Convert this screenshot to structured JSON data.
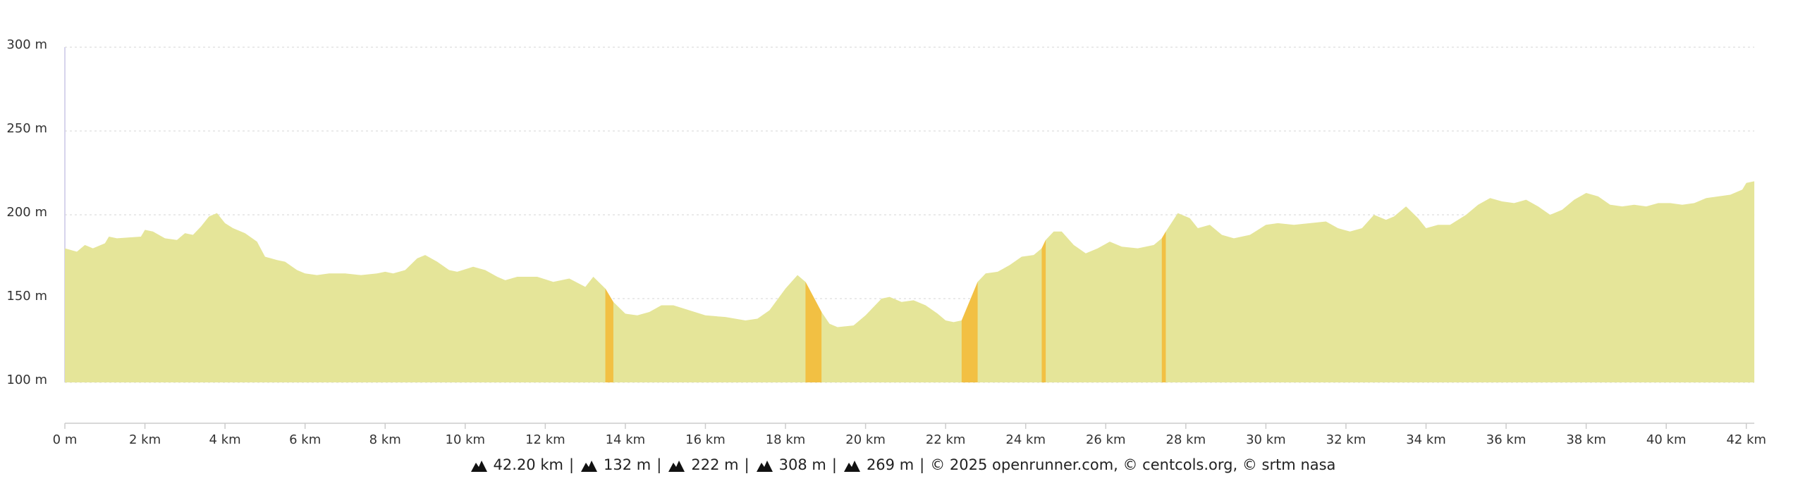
{
  "chart_data": {
    "type": "area",
    "xlim": [
      0,
      42.2
    ],
    "ylim": [
      100,
      300
    ],
    "xticks": [
      {
        "value": 0,
        "label": "0 m"
      },
      {
        "value": 2,
        "label": "2 km"
      },
      {
        "value": 4,
        "label": "4 km"
      },
      {
        "value": 6,
        "label": "6 km"
      },
      {
        "value": 8,
        "label": "8 km"
      },
      {
        "value": 10,
        "label": "10 km"
      },
      {
        "value": 12,
        "label": "12 km"
      },
      {
        "value": 14,
        "label": "14 km"
      },
      {
        "value": 16,
        "label": "16 km"
      },
      {
        "value": 18,
        "label": "18 km"
      },
      {
        "value": 20,
        "label": "20 km"
      },
      {
        "value": 22,
        "label": "22 km"
      },
      {
        "value": 24,
        "label": "24 km"
      },
      {
        "value": 26,
        "label": "26 km"
      },
      {
        "value": 28,
        "label": "28 km"
      },
      {
        "value": 30,
        "label": "30 km"
      },
      {
        "value": 32,
        "label": "32 km"
      },
      {
        "value": 34,
        "label": "34 km"
      },
      {
        "value": 36,
        "label": "36 km"
      },
      {
        "value": 38,
        "label": "38 km"
      },
      {
        "value": 40,
        "label": "40 km"
      },
      {
        "value": 42,
        "label": "42 km"
      }
    ],
    "yticks": [
      {
        "value": 100,
        "label": "100 m"
      },
      {
        "value": 150,
        "label": "150 m"
      },
      {
        "value": 200,
        "label": "200 m"
      },
      {
        "value": 250,
        "label": "250 m"
      },
      {
        "value": 300,
        "label": "300 m"
      }
    ],
    "grid": true,
    "series": [
      {
        "color": "#e5e599",
        "x": [
          0,
          0.3,
          0.5,
          0.7,
          1.0,
          1.1,
          1.3,
          1.9,
          2.0,
          2.2,
          2.5,
          2.8,
          3.0,
          3.2,
          3.4,
          3.6,
          3.8,
          4.0,
          4.2,
          4.5,
          4.8,
          5.0,
          5.3,
          5.5,
          5.8,
          6.0,
          6.3,
          6.6,
          7.0,
          7.4,
          7.8,
          8.0,
          8.2,
          8.5,
          8.8,
          9.0,
          9.3,
          9.6,
          9.8,
          10.2,
          10.5,
          10.8,
          11.0,
          11.3,
          11.8,
          12.2,
          12.6,
          13.0,
          13.2,
          13.5,
          13.7,
          14.0,
          14.3,
          14.6,
          14.9,
          15.2,
          15.6,
          16.0,
          16.5,
          17.0,
          17.3,
          17.6,
          18.0,
          18.3,
          18.5,
          18.9,
          19.1,
          19.3,
          19.7,
          20.0,
          20.4,
          20.6,
          20.9,
          21.2,
          21.5,
          21.8,
          22.0,
          22.2,
          22.4,
          22.8,
          23.0,
          23.3,
          23.6,
          23.9,
          24.2,
          24.4,
          24.5,
          24.7,
          24.9,
          25.2,
          25.5,
          25.8,
          26.1,
          26.4,
          26.8,
          27.2,
          27.4,
          27.5,
          27.8,
          28.1,
          28.3,
          28.6,
          28.9,
          29.2,
          29.6,
          30.0,
          30.3,
          30.7,
          31.1,
          31.5,
          31.8,
          32.1,
          32.4,
          32.7,
          33.0,
          33.2,
          33.5,
          33.8,
          34.0,
          34.3,
          34.6,
          35.0,
          35.3,
          35.6,
          35.9,
          36.2,
          36.5,
          36.8,
          37.1,
          37.4,
          37.7,
          38.0,
          38.3,
          38.6,
          38.9,
          39.2,
          39.5,
          39.8,
          40.1,
          40.4,
          40.7,
          41.0,
          41.3,
          41.6,
          41.9,
          42.0,
          42.2
        ],
        "values": [
          180,
          178,
          182,
          180,
          183,
          187,
          186,
          187,
          191,
          190,
          186,
          185,
          189,
          188,
          193,
          199,
          201,
          195,
          192,
          189,
          184,
          175,
          173,
          172,
          167,
          165,
          164,
          165,
          165,
          164,
          165,
          166,
          165,
          167,
          174,
          176,
          172,
          167,
          166,
          169,
          167,
          163,
          161,
          163,
          163,
          160,
          162,
          157,
          163,
          156,
          148,
          141,
          140,
          142,
          146,
          146,
          143,
          140,
          139,
          137,
          138,
          143,
          156,
          164,
          160,
          142,
          135,
          133,
          134,
          140,
          150,
          151,
          148,
          149,
          146,
          141,
          137,
          136,
          137,
          160,
          165,
          166,
          170,
          175,
          176,
          180,
          185,
          190,
          190,
          182,
          177,
          180,
          184,
          181,
          180,
          182,
          186,
          190,
          201,
          198,
          192,
          194,
          188,
          186,
          188,
          194,
          195,
          194,
          195,
          196,
          192,
          190,
          192,
          200,
          197,
          199,
          205,
          198,
          192,
          194,
          194,
          200,
          206,
          210,
          208,
          207,
          209,
          205,
          200,
          203,
          209,
          213,
          211,
          206,
          205,
          206,
          205,
          207,
          207,
          206,
          207,
          210,
          211,
          212,
          215,
          219,
          220
        ]
      },
      {
        "color": "#f2c043",
        "x": [
          13.5,
          13.7
        ],
        "values": [
          156,
          148
        ]
      },
      {
        "color": "#f2c043",
        "x": [
          18.5,
          18.9
        ],
        "values": [
          160,
          142
        ]
      },
      {
        "color": "#f2c043",
        "x": [
          22.4,
          22.8
        ],
        "values": [
          137,
          160
        ]
      },
      {
        "color": "#f2c043",
        "x": [
          24.4,
          24.5
        ],
        "values": [
          180,
          185
        ]
      },
      {
        "color": "#f2c043",
        "x": [
          27.4,
          27.5
        ],
        "values": [
          186,
          190
        ]
      }
    ]
  },
  "footer": {
    "items": [
      "42.20 km",
      "132 m",
      "222 m",
      "308 m",
      "269 m"
    ],
    "separator": "|",
    "copyright": "© 2025 openrunner.com, © centcols.org, © srtm nasa"
  }
}
